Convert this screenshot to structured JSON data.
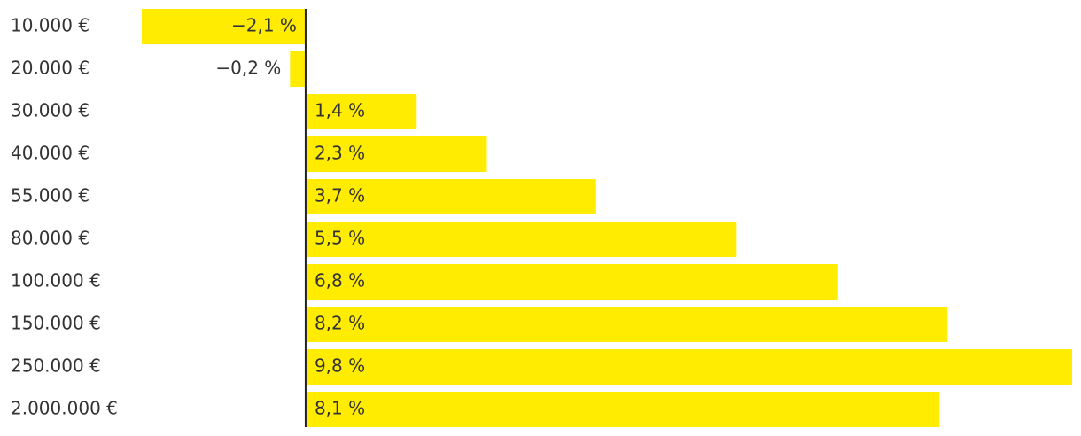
{
  "chart_data": {
    "type": "bar",
    "orientation": "horizontal",
    "categories": [
      "10.000 €",
      "20.000 €",
      "30.000 €",
      "40.000 €",
      "55.000 €",
      "80.000 €",
      "100.000 €",
      "150.000 €",
      "250.000 €",
      "2.000.000 €"
    ],
    "values": [
      -2.1,
      -0.2,
      1.4,
      2.3,
      3.7,
      5.5,
      6.8,
      8.2,
      9.8,
      8.1
    ],
    "value_labels": [
      "−2,1 %",
      "−0,2 %",
      "1,4 %",
      "2,3 %",
      "3,7 %",
      "5,5 %",
      "6,8 %",
      "8,2 %",
      "9,8 %",
      "8,1 %"
    ],
    "color": "#ffec00"
  }
}
